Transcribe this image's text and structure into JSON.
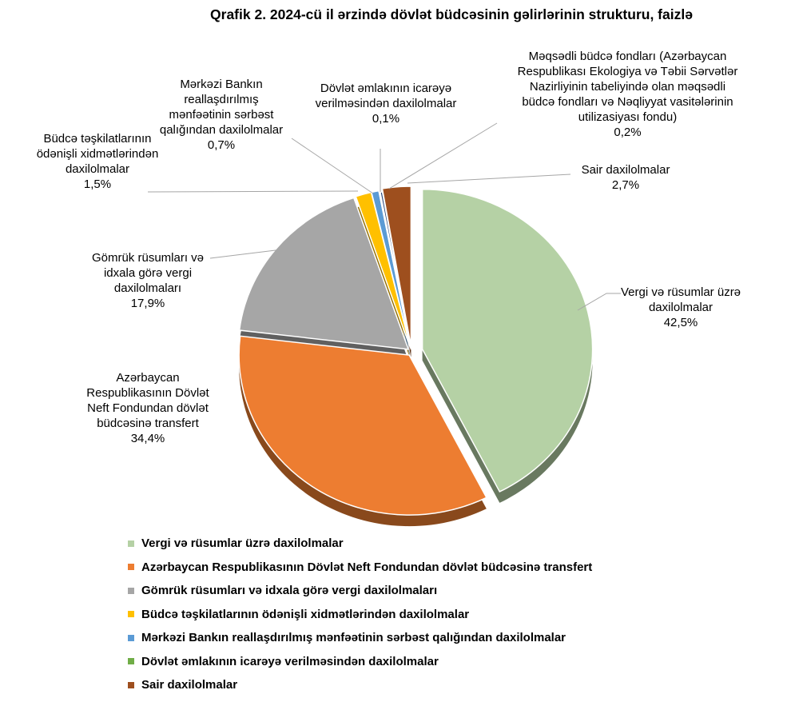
{
  "title": "Qrafik 2. 2024-cü il ərzində dövlət büdcəsinin gəlirlərinin strukturu, faizlə",
  "chart_data": {
    "type": "pie",
    "style": "3d-exploded",
    "title": "Qrafik 2. 2024-cü il ərzində dövlət büdcəsinin gəlirlərinin strukturu, faizlə",
    "unit": "faiz (%)",
    "legend_position": "bottom-left",
    "start_angle_deg": 0,
    "direction": "clockwise",
    "slices": [
      {
        "label": "Vergi və rüsumlar üzrə daxilolmalar",
        "value": 42.5,
        "display_value": "42,5%",
        "color": "#b5d1a5"
      },
      {
        "label": "Azərbaycan Respublikasının Dövlət Neft Fondundan dövlət büdcəsinə transfert",
        "value": 34.4,
        "display_value": "34,4%",
        "color": "#ed7d31"
      },
      {
        "label": "Gömrük rüsumları və idxala görə vergi daxilolmaları",
        "value": 17.9,
        "display_value": "17,9%",
        "color": "#a6a6a6"
      },
      {
        "label": "Büdcə təşkilatlarının ödənişli xidmətlərindən daxilolmalar",
        "value": 1.5,
        "display_value": "1,5%",
        "color": "#ffc000"
      },
      {
        "label": "Mərkəzi Bankın reallaşdırılmış mənfəətinin sərbəst qalığından daxilolmalar",
        "value": 0.7,
        "display_value": "0,7%",
        "color": "#5b9bd5"
      },
      {
        "label": "Dövlət əmlakının icarəyə verilməsindən daxilolmalar",
        "value": 0.1,
        "display_value": "0,1%",
        "color": "#70ad47"
      },
      {
        "label": "Məqsədli büdcə fondları (Azərbaycan Respublikası Ekologiya və Təbii Sərvətlər Nazirliyinin tabeliyində olan məqsədli büdcə fondları və Nəqliyyat vasitələrinin utilizasiyası fondu)",
        "value": 0.2,
        "display_value": "0,2%",
        "color": "#264478"
      },
      {
        "label": "Sair daxilolmalar",
        "value": 2.7,
        "display_value": "2,7%",
        "color": "#9e4f1e"
      }
    ],
    "legend_order": [
      0,
      1,
      2,
      3,
      4,
      5,
      7
    ]
  },
  "callouts": {
    "central_bank": {
      "text": "Mərkəzi Bankın\nreallaşdırılmış\nmənfəətinin sərbəst\nqalığından daxilolmalar\n0,7%"
    },
    "state_property": {
      "text": "Dövlət əmlakının icarəyə\nverilməsindən daxilolmalar\n0,1%"
    },
    "targeted_funds": {
      "text": "Məqsədli büdcə fondları (Azərbaycan\nRespublikası Ekologiya və Təbii Sərvətlər\nNazirliyinin tabeliyində olan məqsədli\nbüdcə fondları və Nəqliyyat vasitələrinin\nutilizasiyası fondu)\n0,2%"
    },
    "budget_orgs": {
      "text": "Büdcə təşkilatlarının\nödənişli xidmətlərindən\ndaxilolmalar\n1,5%"
    },
    "other": {
      "text": "Sair daxilolmalar\n2,7%"
    },
    "customs": {
      "text": "Gömrük rüsumları və\nidxala görə vergi\ndaxilolmaları\n17,9%"
    },
    "taxes": {
      "text": "Vergi və rüsumlar üzrə\ndaxilolmalar\n42,5%"
    },
    "oil_fund": {
      "text": "Azərbaycan\nRespublikasının Dövlət\nNeft Fondundan dövlət\nbüdcəsinə transfert\n34,4%"
    }
  },
  "colors": {
    "leader_line": "#a6a6a6",
    "background": "#ffffff",
    "text": "#000000"
  }
}
